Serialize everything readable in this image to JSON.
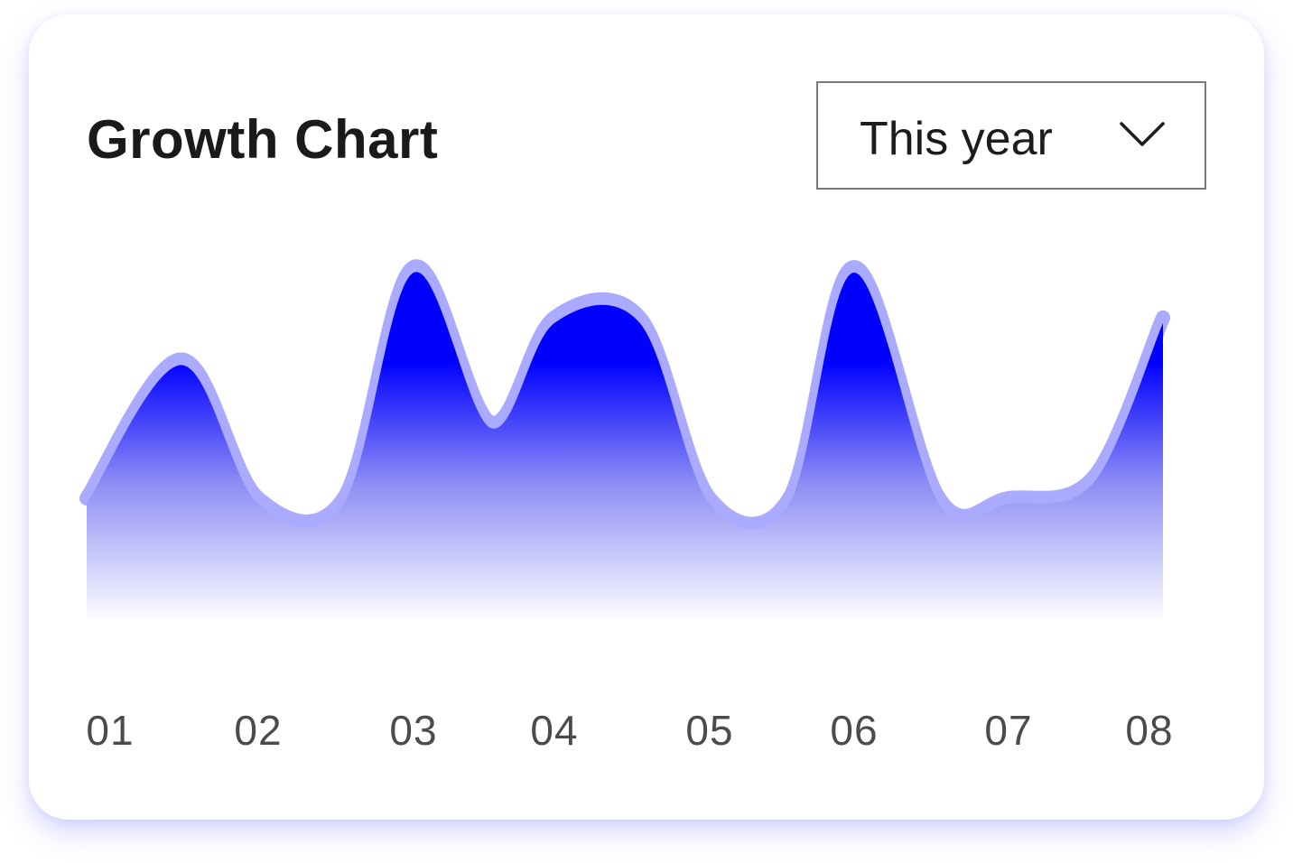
{
  "header": {
    "title": "Growth Chart"
  },
  "filter": {
    "selected": "This year"
  },
  "colors": {
    "accent": "#0000ff",
    "highlight": "#aaaaff",
    "axis_text": "#4d4a4c"
  },
  "chart_data": {
    "type": "area",
    "title": "Growth Chart",
    "categories": [
      "01",
      "02",
      "03",
      "04",
      "05",
      "06",
      "07",
      "08"
    ],
    "x": [
      1,
      1.55,
      2,
      2.55,
      3,
      3.55,
      4,
      4.55,
      5,
      5.55,
      6,
      6.55,
      7,
      7.55,
      8
    ],
    "values": [
      0.45,
      0.78,
      0.45,
      0.45,
      1.0,
      0.63,
      0.88,
      0.88,
      0.45,
      0.45,
      1.0,
      0.45,
      0.45,
      0.5,
      0.88
    ],
    "ylim": [
      0,
      1.1
    ],
    "grid": false,
    "legend": "none",
    "smooth": true,
    "gradient_fill": true
  }
}
